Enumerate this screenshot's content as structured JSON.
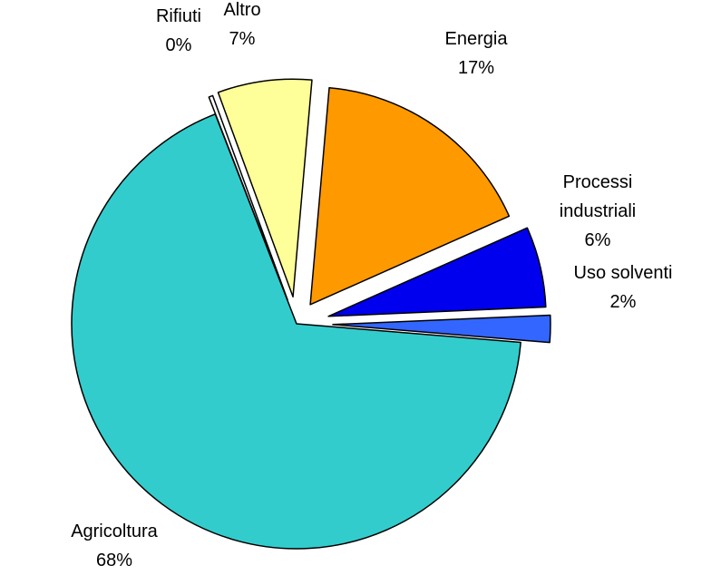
{
  "chart_data": {
    "type": "pie",
    "title": "",
    "legend": "none",
    "slices": [
      {
        "name": "Energia",
        "label_lines": [
          "Energia"
        ],
        "value": 17,
        "value_label": "17%",
        "color": "#ff9900"
      },
      {
        "name": "Processi industriali",
        "label_lines": [
          "Processi",
          "industriali"
        ],
        "value": 6,
        "value_label": "6%",
        "color": "#0000ee"
      },
      {
        "name": "Uso solventi",
        "label_lines": [
          "Uso solventi"
        ],
        "value": 2,
        "value_label": "2%",
        "color": "#3366ff"
      },
      {
        "name": "Agricoltura",
        "label_lines": [
          "Agricoltura"
        ],
        "value": 68,
        "value_label": "68%",
        "color": "#33cccc"
      },
      {
        "name": "Rifiuti",
        "label_lines": [
          "Rifiuti"
        ],
        "value": 0.3,
        "value_label": "0%",
        "color": "#ffffff"
      },
      {
        "name": "Altro",
        "label_lines": [
          "Altro"
        ],
        "value": 7,
        "value_label": "7%",
        "color": "#ffff99"
      }
    ]
  }
}
